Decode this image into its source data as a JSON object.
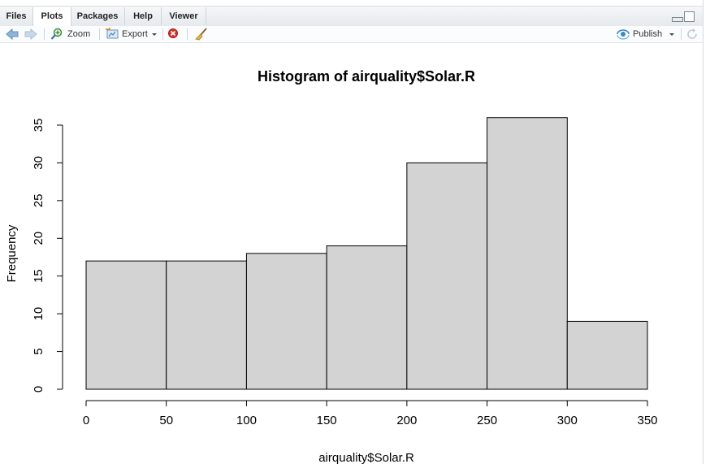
{
  "tabs": [
    {
      "label": "Files",
      "active": false
    },
    {
      "label": "Plots",
      "active": true
    },
    {
      "label": "Packages",
      "active": false
    },
    {
      "label": "Help",
      "active": false
    },
    {
      "label": "Viewer",
      "active": false
    }
  ],
  "toolbar": {
    "zoom_label": "Zoom",
    "export_label": "Export",
    "publish_label": "Publish",
    "icons": [
      "back-arrow-icon",
      "forward-arrow-icon",
      "zoom-icon",
      "export-icon",
      "dropdown-icon",
      "remove-plot-icon",
      "broom-icon",
      "publish-icon",
      "refresh-icon"
    ]
  },
  "colors": {
    "accent": "#3c87c7",
    "remove": "#d9322b",
    "bar_fill": "#d3d3d3",
    "bar_stroke": "#000000"
  },
  "chart_data": {
    "type": "bar",
    "title": "Histogram of airquality$Solar.R",
    "xlabel": "airquality$Solar.R",
    "ylabel": "Frequency",
    "bins": [
      [
        0,
        50
      ],
      [
        50,
        100
      ],
      [
        100,
        150
      ],
      [
        150,
        200
      ],
      [
        200,
        250
      ],
      [
        250,
        300
      ],
      [
        300,
        350
      ]
    ],
    "values": [
      17,
      17,
      18,
      19,
      30,
      36,
      9
    ],
    "xlim": [
      0,
      350
    ],
    "ylim": [
      0,
      35
    ],
    "xticks": [
      0,
      50,
      100,
      150,
      200,
      250,
      300,
      350
    ],
    "yticks": [
      0,
      5,
      10,
      15,
      20,
      25,
      30,
      35
    ],
    "grid": false
  }
}
